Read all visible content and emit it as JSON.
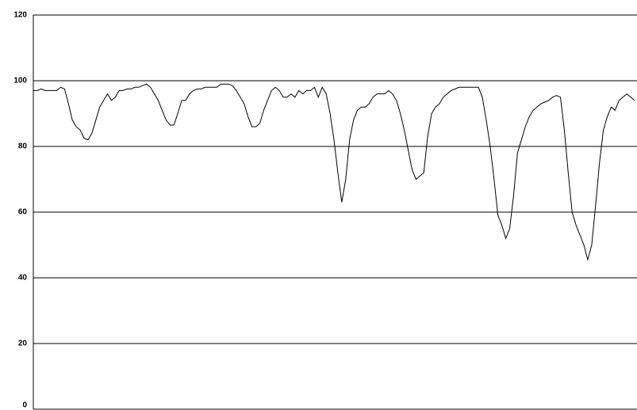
{
  "chart_data": {
    "type": "line",
    "color": "#000000",
    "grid": true,
    "ylim": [
      0,
      120
    ],
    "yticks": [
      0,
      20,
      40,
      60,
      80,
      100,
      120
    ],
    "values": [
      97,
      97,
      97.5,
      97,
      97,
      97,
      97,
      98,
      97.5,
      93,
      88,
      86,
      85,
      82.5,
      82,
      84,
      88,
      92,
      94,
      96,
      94,
      95,
      97,
      97,
      97.5,
      97.5,
      98,
      98,
      98.5,
      99,
      98,
      96,
      94,
      91,
      88,
      86.5,
      86.5,
      90,
      94,
      94,
      96,
      97,
      97.5,
      97.5,
      98,
      98,
      98,
      98,
      99,
      99,
      99,
      98.5,
      97,
      95,
      93,
      89,
      86,
      86,
      87,
      91,
      94,
      97,
      98,
      97,
      95,
      95,
      96,
      95,
      97,
      96,
      97,
      97,
      98,
      95,
      98,
      96,
      90,
      82,
      72,
      63,
      70,
      82,
      88,
      91,
      92,
      92,
      93,
      95,
      96,
      96,
      96,
      97,
      96,
      94,
      90,
      85,
      79,
      73,
      70,
      71,
      72,
      83,
      90,
      92,
      93,
      95,
      96,
      97,
      97.5,
      98,
      98,
      98,
      98,
      98,
      98,
      95,
      88,
      80,
      70,
      59,
      56,
      52,
      55,
      65,
      78,
      82,
      86,
      89,
      91,
      92,
      93,
      93.5,
      94,
      95,
      95.5,
      95,
      85,
      72,
      60,
      56,
      53,
      50,
      45.5,
      50,
      62,
      75,
      85,
      89,
      92,
      91,
      94,
      95,
      96,
      95,
      94
    ]
  }
}
